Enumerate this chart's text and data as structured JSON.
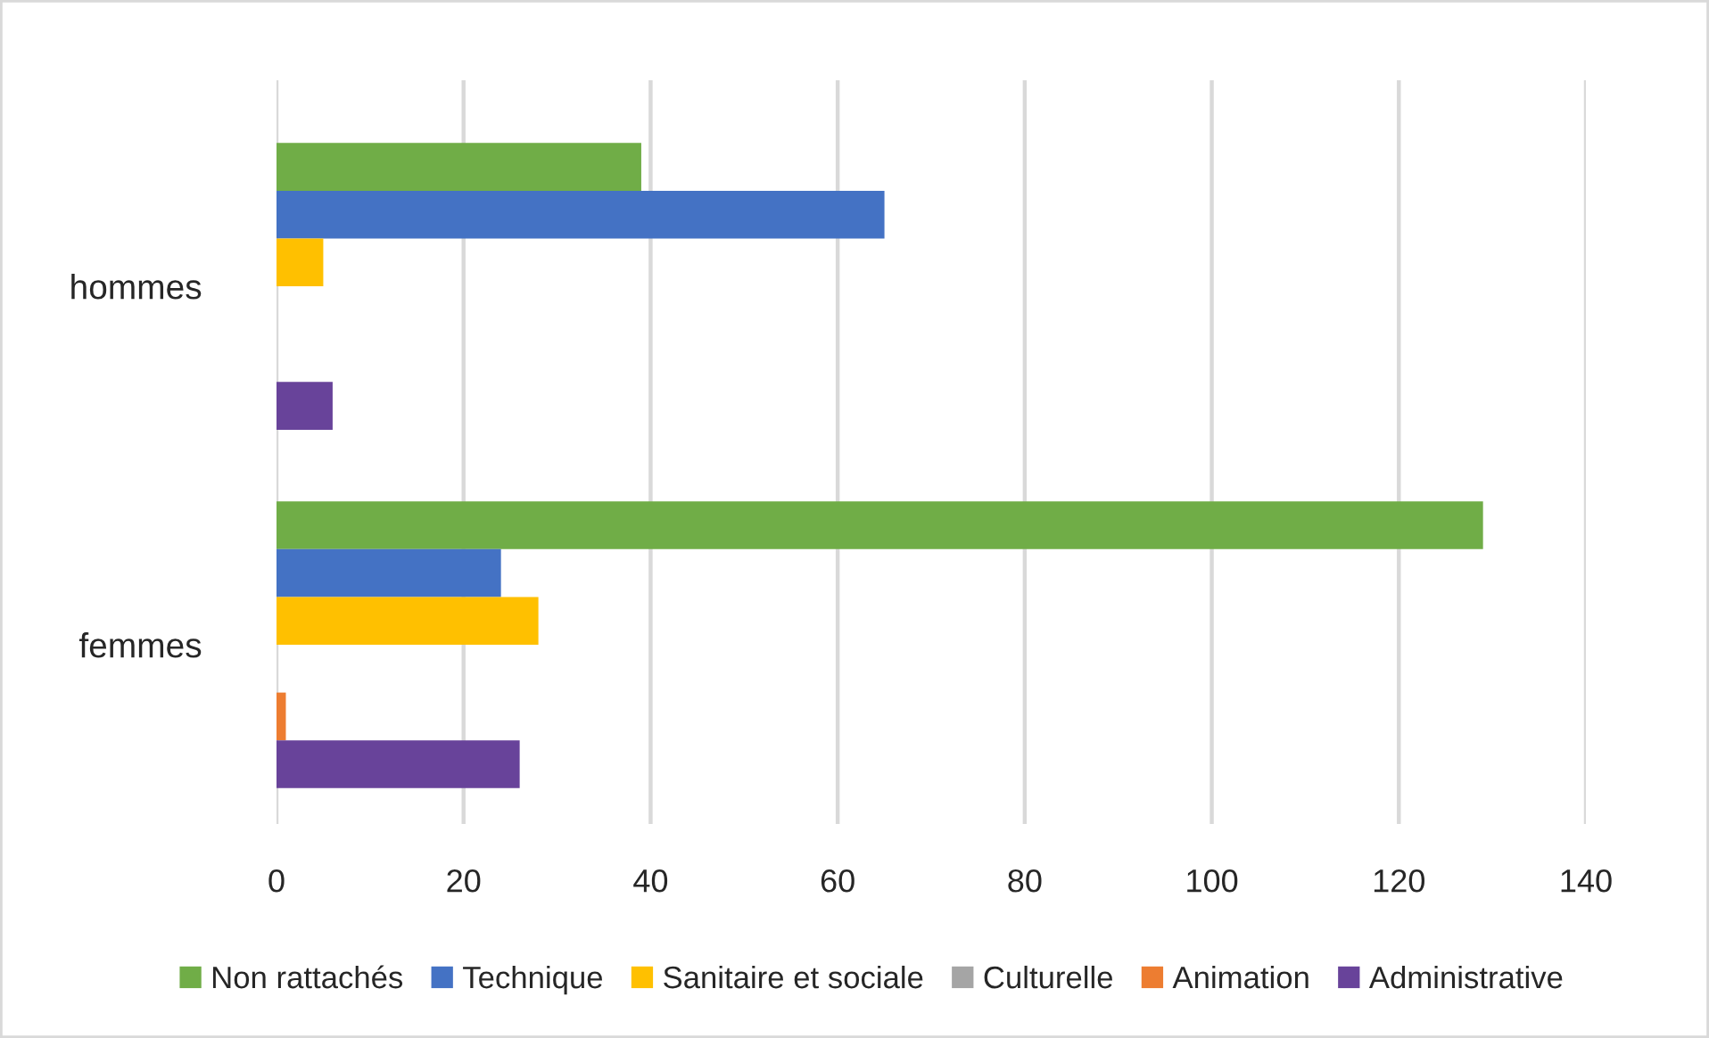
{
  "chart_data": {
    "type": "bar",
    "orientation": "horizontal",
    "categories": [
      "hommes",
      "femmes"
    ],
    "series": [
      {
        "name": "Non rattachés",
        "color": "#70ad47",
        "values": [
          39,
          129
        ]
      },
      {
        "name": "Technique",
        "color": "#4472c4",
        "values": [
          65,
          24
        ]
      },
      {
        "name": "Sanitaire et sociale",
        "color": "#ffc000",
        "values": [
          5,
          28
        ]
      },
      {
        "name": "Culturelle",
        "color": "#a5a5a5",
        "values": [
          null,
          null
        ]
      },
      {
        "name": "Animation",
        "color": "#ed7d31",
        "values": [
          null,
          1
        ]
      },
      {
        "name": "Administrative",
        "color": "#68439a",
        "values": [
          6,
          26
        ]
      }
    ],
    "xlim": [
      0,
      140
    ],
    "xticks": [
      0,
      20,
      40,
      60,
      80,
      100,
      120,
      140
    ],
    "grid": "x",
    "legend": "bottom"
  }
}
